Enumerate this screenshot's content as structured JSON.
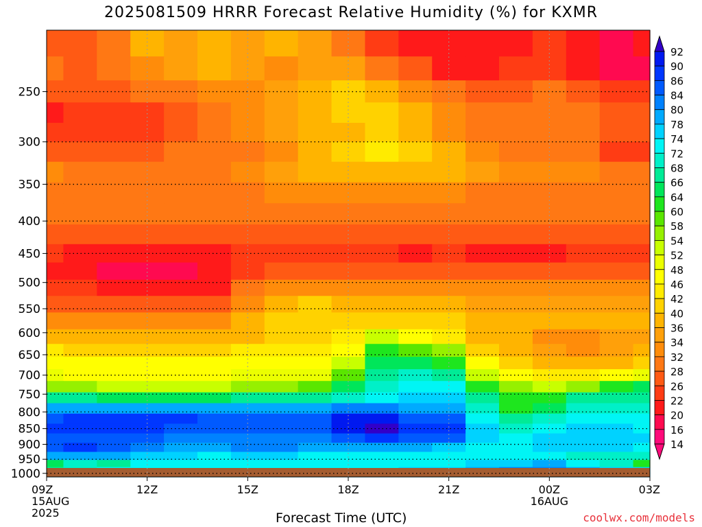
{
  "chart_data": {
    "type": "heatmap",
    "title": "2025081509 HRRR Forecast Relative Humidity (%) for KXMR",
    "xlabel": "Forecast Time (UTC)",
    "ylabel": "",
    "credit": "coolwx.com/models",
    "x_ticks": [
      {
        "lines": [
          "09Z",
          "15AUG",
          "2025"
        ],
        "hour": 0
      },
      {
        "lines": [
          "12Z"
        ],
        "hour": 3
      },
      {
        "lines": [
          "15Z"
        ],
        "hour": 6
      },
      {
        "lines": [
          "18Z"
        ],
        "hour": 9
      },
      {
        "lines": [
          "21Z"
        ],
        "hour": 12
      },
      {
        "lines": [
          "00Z",
          "16AUG"
        ],
        "hour": 15
      },
      {
        "lines": [
          "03Z"
        ],
        "hour": 18
      }
    ],
    "xlim": [
      0,
      18
    ],
    "y_ticks": [
      "250",
      "300",
      "350",
      "400",
      "450",
      "500",
      "550",
      "600",
      "650",
      "700",
      "750",
      "800",
      "850",
      "900",
      "950",
      "1000"
    ],
    "ylim": [
      200,
      1013
    ],
    "y_scale": "log",
    "colorbar_levels": [
      "92",
      "90",
      "86",
      "84",
      "80",
      "78",
      "74",
      "72",
      "68",
      "66",
      "64",
      "60",
      "58",
      "54",
      "52",
      "48",
      "46",
      "42",
      "40",
      "36",
      "34",
      "32",
      "28",
      "26",
      "22",
      "20",
      "16",
      "14"
    ],
    "colors": {
      "14": "#ff0a7a",
      "16": "#ff0a50",
      "20": "#ff1a1a",
      "22": "#ff3c14",
      "26": "#ff5a14",
      "28": "#ff7814",
      "32": "#ff8c0a",
      "34": "#ffa00a",
      "36": "#ffb400",
      "40": "#ffd200",
      "42": "#ffeb00",
      "46": "#ffff00",
      "48": "#ebff00",
      "52": "#c8ff00",
      "54": "#96f000",
      "58": "#5ae600",
      "60": "#1ee61e",
      "64": "#00e65a",
      "66": "#00eb96",
      "68": "#00f0c8",
      "72": "#00f5f5",
      "74": "#00d2ff",
      "78": "#00aaff",
      "80": "#0082ff",
      "84": "#005aff",
      "86": "#0037ff",
      "90": "#0019f0",
      "92": "#3200c8",
      "ground": "#a45c30"
    },
    "bands": [
      {
        "p": 210,
        "rh": [
          26,
          26,
          30,
          36,
          34,
          36,
          34,
          36,
          34,
          30,
          22,
          20,
          20,
          20,
          20,
          22,
          20,
          16,
          20
        ]
      },
      {
        "p": 230,
        "rh": [
          28,
          26,
          28,
          32,
          34,
          36,
          34,
          32,
          34,
          34,
          30,
          26,
          20,
          20,
          22,
          22,
          20,
          16,
          16
        ]
      },
      {
        "p": 250,
        "rh": [
          26,
          26,
          26,
          28,
          30,
          32,
          32,
          34,
          36,
          40,
          36,
          32,
          28,
          26,
          26,
          28,
          26,
          22,
          22
        ]
      },
      {
        "p": 270,
        "rh": [
          20,
          22,
          22,
          22,
          26,
          28,
          32,
          34,
          36,
          40,
          40,
          36,
          32,
          28,
          28,
          30,
          28,
          26,
          26
        ]
      },
      {
        "p": 290,
        "rh": [
          22,
          22,
          22,
          22,
          26,
          28,
          32,
          34,
          36,
          36,
          40,
          36,
          32,
          30,
          28,
          28,
          28,
          26,
          26
        ]
      },
      {
        "p": 310,
        "rh": [
          26,
          26,
          26,
          26,
          28,
          30,
          30,
          32,
          36,
          40,
          42,
          40,
          36,
          32,
          30,
          30,
          28,
          22,
          22
        ]
      },
      {
        "p": 335,
        "rh": [
          32,
          30,
          30,
          30,
          30,
          30,
          32,
          34,
          36,
          36,
          36,
          36,
          36,
          34,
          32,
          32,
          32,
          30,
          30
        ]
      },
      {
        "p": 360,
        "rh": [
          30,
          30,
          30,
          30,
          30,
          30,
          30,
          32,
          32,
          32,
          32,
          32,
          32,
          30,
          28,
          30,
          30,
          30,
          30
        ]
      },
      {
        "p": 390,
        "rh": [
          28,
          28,
          28,
          28,
          28,
          28,
          28,
          28,
          28,
          28,
          28,
          28,
          28,
          28,
          28,
          28,
          28,
          28,
          28
        ]
      },
      {
        "p": 420,
        "rh": [
          26,
          26,
          26,
          26,
          26,
          26,
          26,
          26,
          26,
          26,
          26,
          26,
          26,
          26,
          26,
          26,
          26,
          26,
          26
        ]
      },
      {
        "p": 450,
        "rh": [
          22,
          20,
          20,
          20,
          20,
          20,
          22,
          22,
          22,
          22,
          22,
          20,
          22,
          20,
          20,
          20,
          22,
          22,
          22
        ]
      },
      {
        "p": 480,
        "rh": [
          20,
          20,
          16,
          16,
          16,
          20,
          22,
          26,
          26,
          26,
          26,
          26,
          26,
          26,
          26,
          26,
          26,
          26,
          26
        ]
      },
      {
        "p": 510,
        "rh": [
          22,
          22,
          20,
          20,
          20,
          20,
          28,
          32,
          32,
          32,
          32,
          32,
          32,
          32,
          32,
          32,
          32,
          32,
          32
        ]
      },
      {
        "p": 540,
        "rh": [
          26,
          26,
          26,
          26,
          26,
          26,
          32,
          36,
          40,
          36,
          36,
          36,
          36,
          34,
          34,
          34,
          34,
          34,
          34
        ]
      },
      {
        "p": 575,
        "rh": [
          32,
          32,
          32,
          32,
          32,
          32,
          36,
          40,
          40,
          40,
          40,
          40,
          40,
          36,
          36,
          36,
          36,
          36,
          36
        ]
      },
      {
        "p": 610,
        "rh": [
          36,
          36,
          36,
          36,
          36,
          36,
          36,
          40,
          40,
          42,
          52,
          46,
          42,
          36,
          36,
          32,
          32,
          34,
          34
        ]
      },
      {
        "p": 640,
        "rh": [
          42,
          40,
          40,
          40,
          40,
          40,
          42,
          42,
          42,
          46,
          60,
          58,
          54,
          40,
          36,
          34,
          32,
          34,
          36
        ]
      },
      {
        "p": 670,
        "rh": [
          46,
          46,
          46,
          46,
          46,
          46,
          46,
          46,
          46,
          52,
          64,
          64,
          60,
          46,
          40,
          36,
          36,
          36,
          40
        ]
      },
      {
        "p": 700,
        "rh": [
          48,
          46,
          46,
          46,
          46,
          46,
          48,
          48,
          48,
          58,
          66,
          68,
          66,
          52,
          46,
          42,
          42,
          46,
          48
        ]
      },
      {
        "p": 730,
        "rh": [
          54,
          54,
          52,
          52,
          52,
          52,
          54,
          54,
          58,
          64,
          68,
          72,
          72,
          60,
          54,
          52,
          54,
          60,
          64
        ]
      },
      {
        "p": 760,
        "rh": [
          66,
          66,
          64,
          64,
          64,
          64,
          66,
          66,
          66,
          68,
          72,
          74,
          74,
          66,
          60,
          60,
          66,
          66,
          66
        ]
      },
      {
        "p": 790,
        "rh": [
          78,
          78,
          78,
          78,
          78,
          78,
          78,
          78,
          78,
          80,
          80,
          78,
          78,
          68,
          60,
          64,
          68,
          68,
          68
        ]
      },
      {
        "p": 820,
        "rh": [
          84,
          86,
          86,
          86,
          86,
          84,
          84,
          84,
          84,
          90,
          90,
          84,
          84,
          72,
          66,
          68,
          72,
          72,
          72
        ]
      },
      {
        "p": 850,
        "rh": [
          86,
          86,
          86,
          86,
          84,
          84,
          84,
          84,
          84,
          90,
          92,
          86,
          86,
          74,
          68,
          72,
          74,
          74,
          72
        ]
      },
      {
        "p": 880,
        "rh": [
          84,
          84,
          84,
          84,
          80,
          80,
          80,
          80,
          80,
          84,
          86,
          84,
          84,
          74,
          72,
          74,
          74,
          74,
          74
        ]
      },
      {
        "p": 910,
        "rh": [
          84,
          86,
          84,
          80,
          78,
          78,
          80,
          80,
          78,
          78,
          78,
          78,
          74,
          72,
          72,
          74,
          74,
          74,
          72
        ]
      },
      {
        "p": 940,
        "rh": [
          78,
          78,
          78,
          74,
          74,
          72,
          74,
          74,
          72,
          72,
          72,
          72,
          72,
          72,
          72,
          72,
          68,
          68,
          68
        ]
      },
      {
        "p": 965,
        "rh": [
          64,
          68,
          66,
          72,
          72,
          72,
          72,
          72,
          72,
          72,
          72,
          72,
          72,
          74,
          74,
          78,
          72,
          68,
          60
        ]
      },
      {
        "p": 990,
        "rh": [
          66,
          68,
          72,
          72,
          72,
          72,
          72,
          72,
          72,
          72,
          72,
          74,
          74,
          78,
          80,
          80,
          78,
          74,
          74
        ]
      },
      {
        "p": 1008,
        "rh": [
          74,
          74,
          74,
          74,
          74,
          74,
          74,
          74,
          74,
          74,
          74,
          74,
          74,
          74,
          74,
          74,
          74,
          74,
          74
        ]
      }
    ]
  }
}
